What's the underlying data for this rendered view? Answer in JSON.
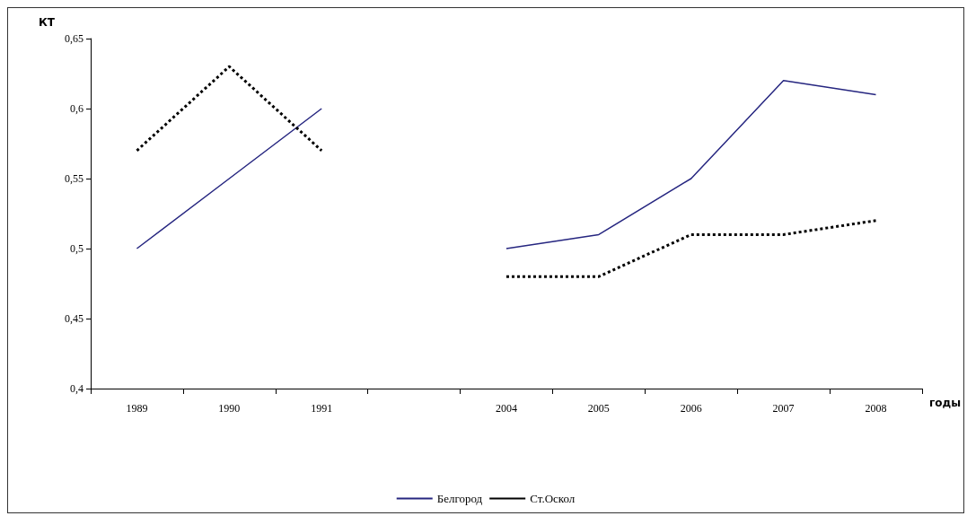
{
  "chart_data": {
    "type": "line",
    "xlabel": "годы",
    "ylabel": "КТ",
    "categories": [
      "1989",
      "1990",
      "1991",
      null,
      "2004",
      "2005",
      "2006",
      "2007",
      "2008"
    ],
    "series": [
      {
        "name": "Белгород",
        "color": "#262680",
        "line_style": "solid",
        "values": [
          0.5,
          0.55,
          0.6,
          null,
          0.5,
          0.51,
          0.55,
          0.62,
          0.61
        ]
      },
      {
        "name": "Ст.Оскол",
        "color": "#000000",
        "line_style": "dashed",
        "values": [
          0.57,
          0.63,
          0.57,
          null,
          0.48,
          0.48,
          0.51,
          0.51,
          0.52
        ]
      }
    ],
    "ylim": [
      0.4,
      0.65
    ],
    "yticks": [
      {
        "value": 0.4,
        "label": "0,4"
      },
      {
        "value": 0.45,
        "label": "0,45"
      },
      {
        "value": 0.5,
        "label": "0,5"
      },
      {
        "value": 0.55,
        "label": "0,55"
      },
      {
        "value": 0.6,
        "label": "0,6"
      },
      {
        "value": 0.65,
        "label": "0,65"
      }
    ],
    "grid": false,
    "legend": "bottom",
    "marker": "none"
  }
}
